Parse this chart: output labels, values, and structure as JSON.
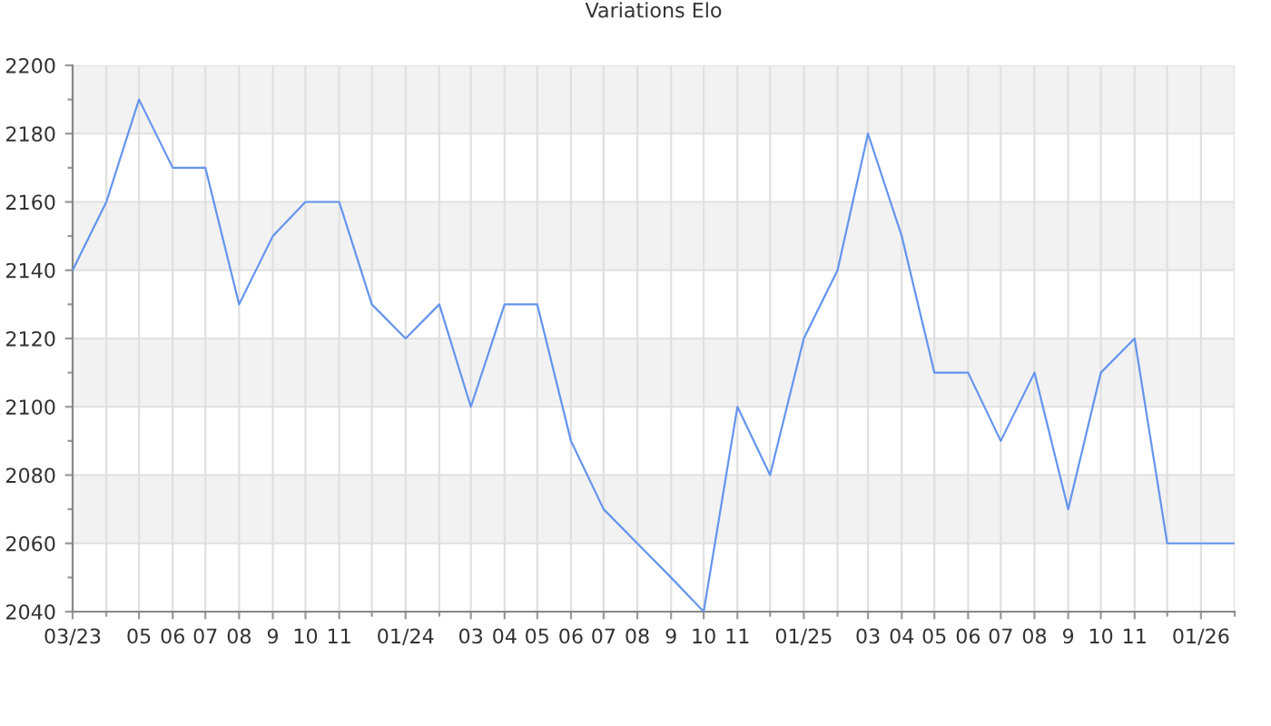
{
  "chart_data": {
    "type": "line",
    "title": "Variations Elo",
    "x": [
      "2023-03",
      "2023-04",
      "2023-05",
      "2023-06",
      "2023-07",
      "2023-08",
      "2023-09",
      "2023-10",
      "2023-11",
      "2023-12",
      "2024-01",
      "2024-02",
      "2024-03",
      "2024-04",
      "2024-05",
      "2024-06",
      "2024-07",
      "2024-08",
      "2024-09",
      "2024-10",
      "2024-11",
      "2024-12",
      "2025-01",
      "2025-02",
      "2025-03",
      "2025-04",
      "2025-05",
      "2025-06",
      "2025-07",
      "2025-08",
      "2025-09",
      "2025-10",
      "2025-11",
      "2025-12",
      "2026-01",
      "2026-02"
    ],
    "series": [
      {
        "color": "#6495ed",
        "values": [
          2140,
          2160,
          2190,
          2170,
          2170,
          2130,
          2150,
          2160,
          2160,
          2130,
          2120,
          2130,
          2100,
          2130,
          2130,
          2090,
          2070,
          2060,
          2050,
          2040,
          2100,
          2080,
          2120,
          2140,
          2180,
          2150,
          2110,
          2110,
          2090,
          2110,
          2070,
          2110,
          2120,
          2060,
          2060,
          2060
        ]
      }
    ],
    "xlim": [
      "2023-03",
      "2026-02"
    ],
    "xticks": [
      {
        "value": "2023-03",
        "label": "03/23"
      },
      {
        "value": "2023-04",
        "label": null
      },
      {
        "value": "2023-05",
        "label": "05"
      },
      {
        "value": "2023-06",
        "label": "06"
      },
      {
        "value": "2023-07",
        "label": "07"
      },
      {
        "value": "2023-08",
        "label": "08"
      },
      {
        "value": "2023-09",
        "label": "9"
      },
      {
        "value": "2023-10",
        "label": "10"
      },
      {
        "value": "2023-11",
        "label": "11"
      },
      {
        "value": "2023-12",
        "label": null
      },
      {
        "value": "2024-01",
        "label": "01/24"
      },
      {
        "value": "2024-02",
        "label": null
      },
      {
        "value": "2024-03",
        "label": "03"
      },
      {
        "value": "2024-04",
        "label": "04"
      },
      {
        "value": "2024-05",
        "label": "05"
      },
      {
        "value": "2024-06",
        "label": "06"
      },
      {
        "value": "2024-07",
        "label": "07"
      },
      {
        "value": "2024-08",
        "label": "08"
      },
      {
        "value": "2024-09",
        "label": "9"
      },
      {
        "value": "2024-10",
        "label": "10"
      },
      {
        "value": "2024-11",
        "label": "11"
      },
      {
        "value": "2024-12",
        "label": null
      },
      {
        "value": "2025-01",
        "label": "01/25"
      },
      {
        "value": "2025-02",
        "label": null
      },
      {
        "value": "2025-03",
        "label": "03"
      },
      {
        "value": "2025-04",
        "label": "04"
      },
      {
        "value": "2025-05",
        "label": "05"
      },
      {
        "value": "2025-06",
        "label": "06"
      },
      {
        "value": "2025-07",
        "label": "07"
      },
      {
        "value": "2025-08",
        "label": "08"
      },
      {
        "value": "2025-09",
        "label": "9"
      },
      {
        "value": "2025-10",
        "label": "10"
      },
      {
        "value": "2025-11",
        "label": "11"
      },
      {
        "value": "2025-12",
        "label": null
      },
      {
        "value": "2026-01",
        "label": "01/26"
      },
      {
        "value": "2026-02",
        "label": null
      }
    ],
    "ylim": [
      2040,
      2200
    ],
    "yticks": [
      2040,
      {
        "value": 2050,
        "label": null
      },
      2060,
      {
        "value": 2070,
        "label": null
      },
      2080,
      {
        "value": 2090,
        "label": null
      },
      2100,
      {
        "value": 2110,
        "label": null
      },
      2120,
      {
        "value": 2130,
        "label": null
      },
      2140,
      {
        "value": 2150,
        "label": null
      },
      2160,
      {
        "value": 2170,
        "label": null
      },
      2180,
      {
        "value": 2190,
        "label": null
      },
      2200
    ],
    "bands": [
      {
        "axis": "y",
        "from": 2060,
        "to": 2080,
        "color": "#f2f2f2"
      },
      {
        "axis": "y",
        "from": 2100,
        "to": 2120,
        "color": "#f2f2f2"
      },
      {
        "axis": "y",
        "from": 2140,
        "to": 2160,
        "color": "#f2f2f2"
      },
      {
        "axis": "y",
        "from": 2180,
        "to": 2200,
        "color": "#f2f2f2"
      }
    ],
    "grid": true
  }
}
